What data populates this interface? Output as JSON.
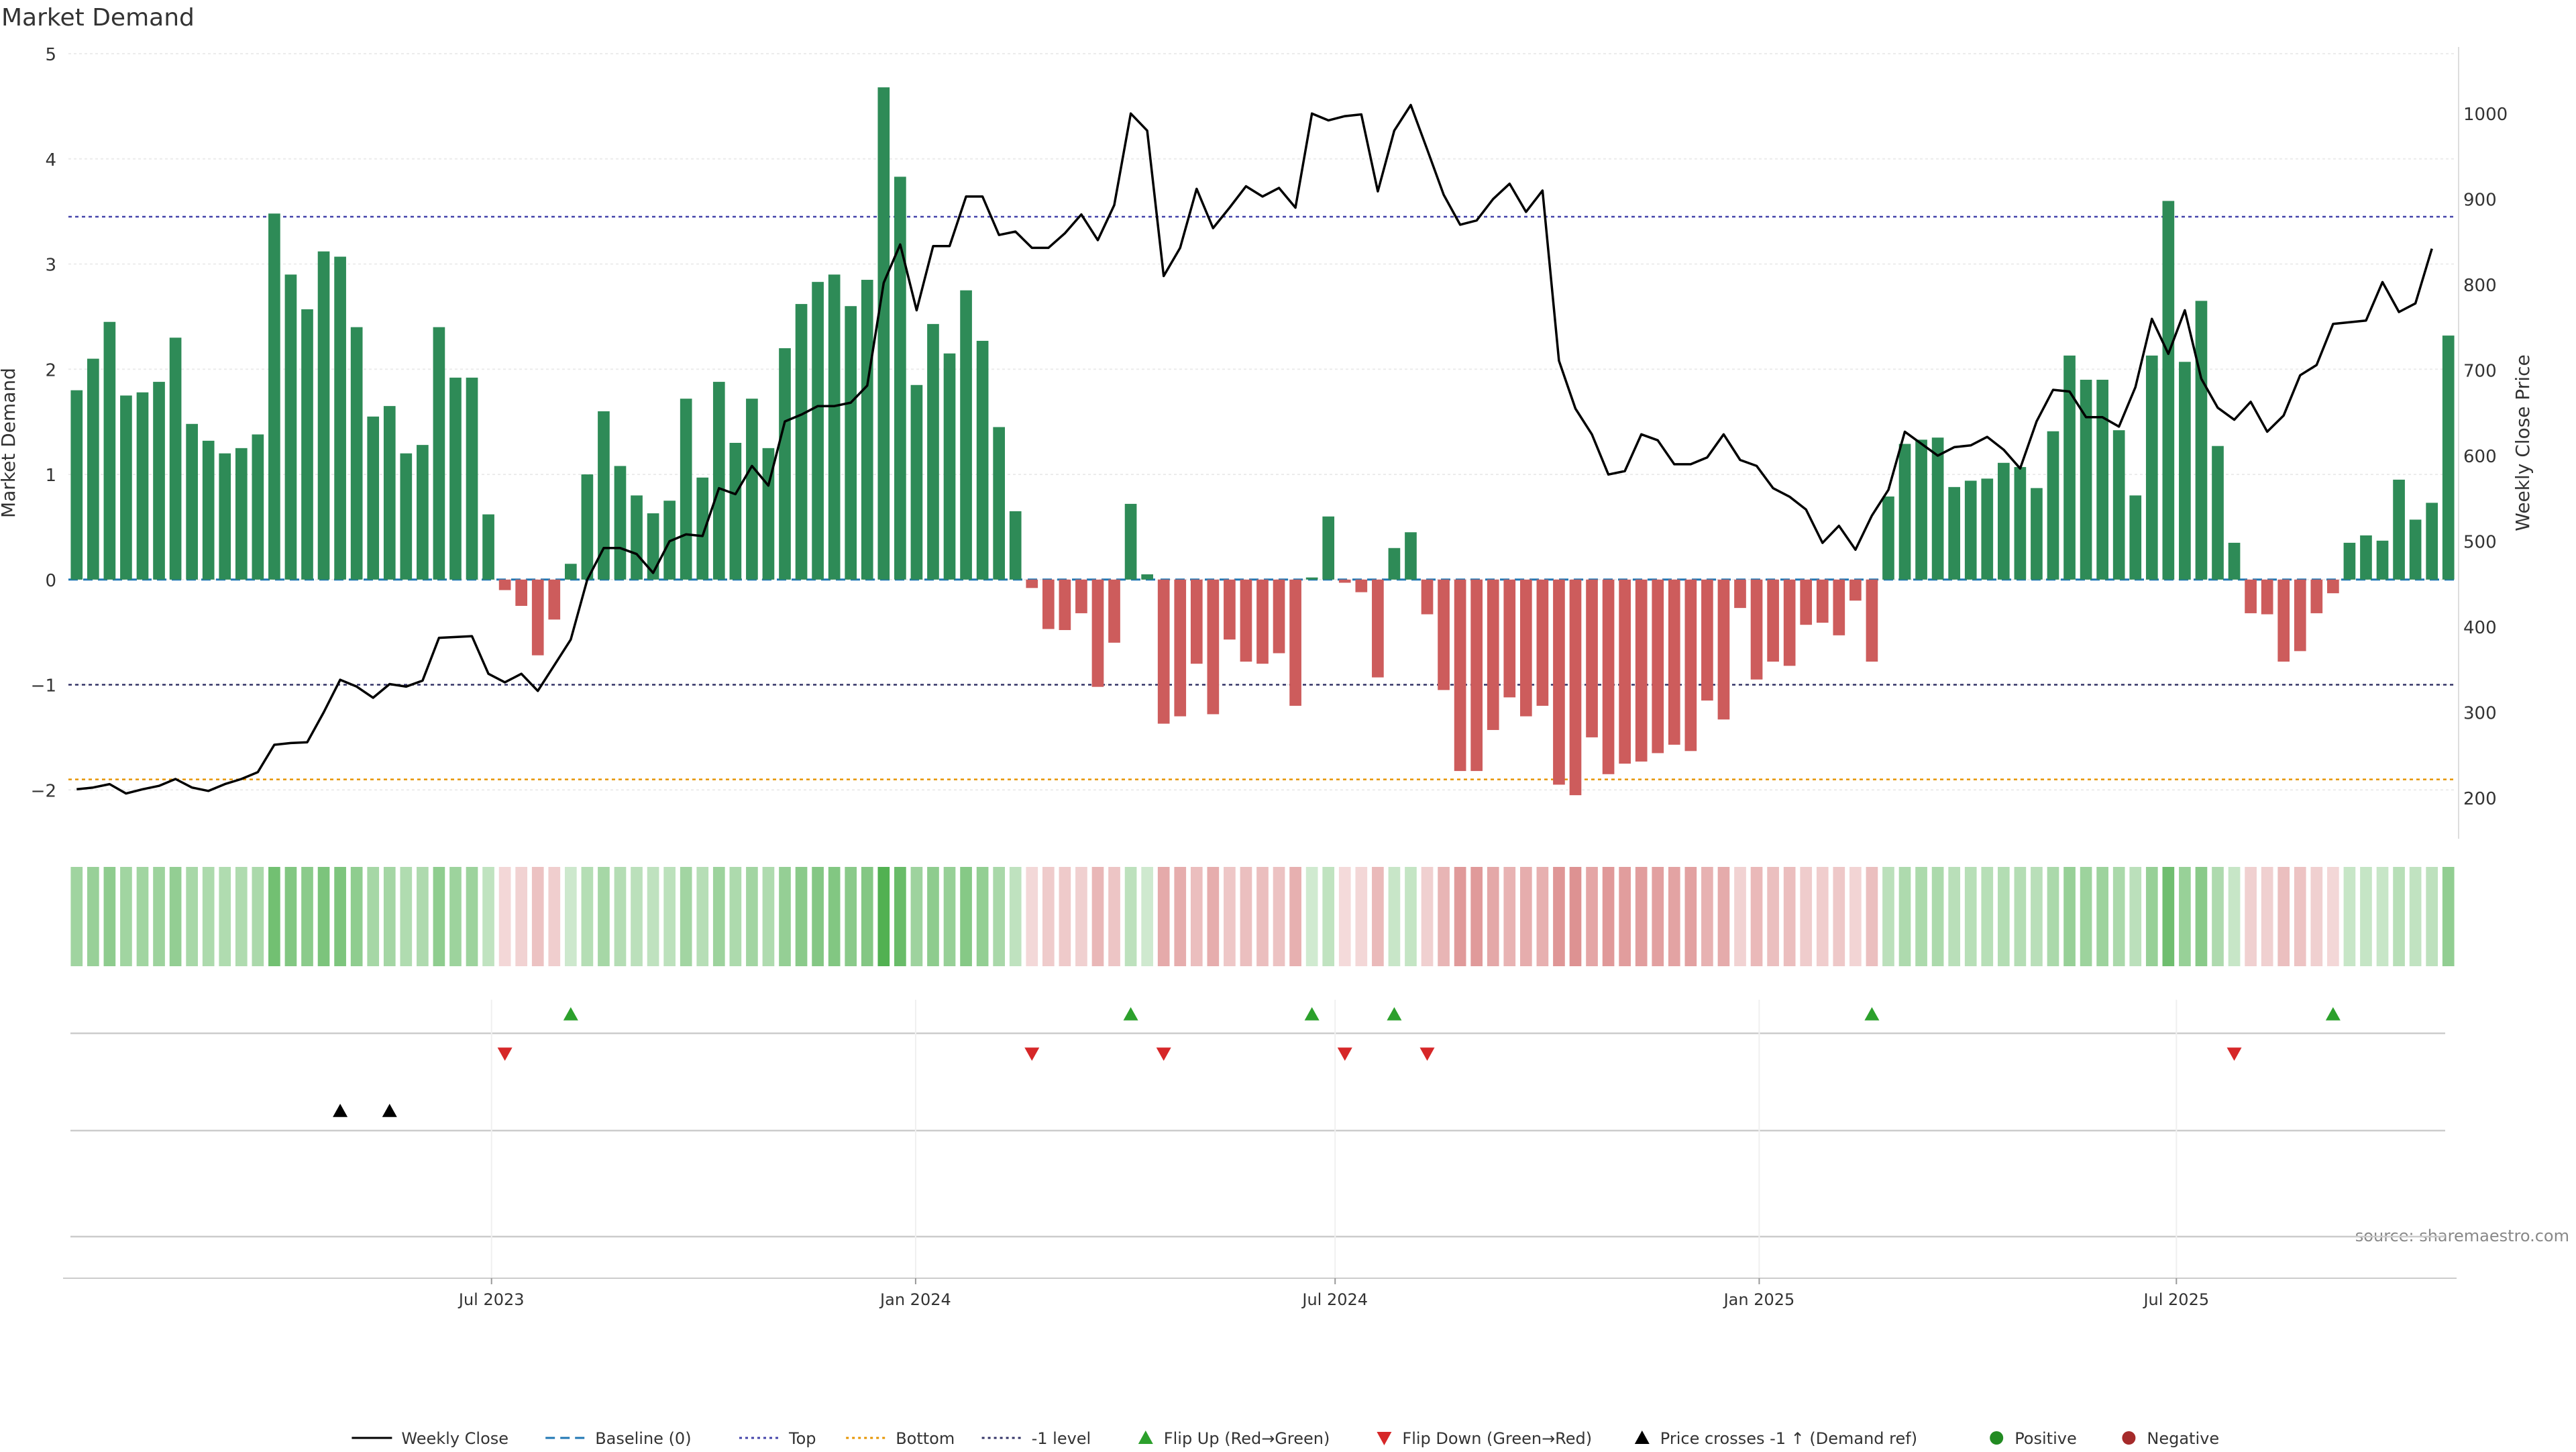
{
  "chart_data": {
    "type": "bar",
    "title": "Market Demand",
    "ylabel_left": "Market Demand",
    "ylabel_right": "Weekly Close Price",
    "source": "source: sharemaestro.com",
    "ylim_left": [
      -2.4,
      5
    ],
    "ylim_right": [
      160,
      1070
    ],
    "yticks_left": [
      "5",
      "4",
      "3",
      "2",
      "1",
      "0",
      "−1",
      "−2"
    ],
    "yticks_left_values": [
      5,
      4,
      3,
      2,
      1,
      0,
      -1,
      -2
    ],
    "yticks_right": [
      "1000",
      "900",
      "800",
      "700",
      "600",
      "500",
      "400",
      "300",
      "200"
    ],
    "yticks_right_values": [
      1000,
      900,
      800,
      700,
      600,
      500,
      400,
      300,
      200
    ],
    "reference_lines": {
      "baseline": 0,
      "top": 3.45,
      "bottom": -1.9,
      "minus_one": -1
    },
    "x_start": "2023-01-02",
    "x_end": "2025-10-27",
    "x_tick_labels": [
      {
        "label": "Jul 2023",
        "date": "2023-07-01"
      },
      {
        "label": "Jan 2024",
        "date": "2024-01-01"
      },
      {
        "label": "Jul 2024",
        "date": "2024-07-01"
      },
      {
        "label": "Jan 2025",
        "date": "2025-01-01"
      },
      {
        "label": "Jul 2025",
        "date": "2025-07-01"
      }
    ],
    "series": [
      {
        "name": "Market Demand",
        "values": [
          1.8,
          2.1,
          2.45,
          1.75,
          1.78,
          1.88,
          2.3,
          1.48,
          1.32,
          1.2,
          1.25,
          1.38,
          3.48,
          2.9,
          2.57,
          3.12,
          3.07,
          2.4,
          1.55,
          1.65,
          1.2,
          1.28,
          2.4,
          1.92,
          1.92,
          0.62,
          -0.1,
          -0.25,
          -0.72,
          -0.38,
          0.15,
          1.0,
          1.6,
          1.08,
          0.8,
          0.63,
          0.75,
          1.72,
          0.97,
          1.88,
          1.3,
          1.72,
          1.25,
          2.2,
          2.62,
          2.83,
          2.9,
          2.6,
          2.85,
          4.68,
          3.83,
          1.85,
          2.43,
          2.15,
          2.75,
          2.27,
          1.45,
          0.65,
          -0.08,
          -0.47,
          -0.48,
          -0.32,
          -1.02,
          -0.6,
          0.72,
          0.05,
          -1.37,
          -1.3,
          -0.8,
          -1.28,
          -0.57,
          -0.78,
          -0.8,
          -0.7,
          -1.2,
          0.02,
          0.6,
          -0.03,
          -0.12,
          -0.93,
          0.3,
          0.45,
          -0.33,
          -1.05,
          -1.82,
          -1.82,
          -1.43,
          -1.12,
          -1.3,
          -1.2,
          -1.95,
          -2.05,
          -1.5,
          -1.85,
          -1.75,
          -1.73,
          -1.65,
          -1.57,
          -1.63,
          -1.15,
          -1.33,
          -0.27,
          -0.95,
          -0.78,
          -0.82,
          -0.43,
          -0.41,
          -0.53,
          -0.2,
          -0.78,
          0.79,
          1.29,
          1.33,
          1.35,
          0.88,
          0.94,
          0.96,
          1.11,
          1.07,
          0.87,
          1.41,
          2.13,
          1.9,
          1.9,
          1.42,
          0.8,
          2.13,
          3.6,
          2.07,
          2.65,
          1.27,
          0.35,
          -0.32,
          -0.33,
          -0.78,
          -0.68,
          -0.32,
          -0.13,
          0.35,
          0.42,
          0.37,
          0.95,
          0.57,
          0.73,
          2.32
        ]
      },
      {
        "name": "Weekly Close",
        "values": [
          210,
          212,
          216,
          205,
          210,
          214,
          222,
          212,
          208,
          216,
          222,
          230,
          262,
          264,
          265,
          300,
          338,
          330,
          317,
          333,
          330,
          337,
          387,
          388,
          389,
          345,
          335,
          345,
          325,
          355,
          385,
          455,
          492,
          492,
          485,
          463,
          500,
          508,
          506,
          562,
          555,
          588,
          565,
          640,
          648,
          658,
          658,
          662,
          682,
          802,
          847,
          770,
          845,
          845,
          903,
          903,
          858,
          862,
          843,
          843,
          860,
          882,
          852,
          893,
          1000,
          980,
          810,
          843,
          912,
          866,
          890,
          915,
          903,
          913,
          890,
          1000,
          992,
          997,
          999,
          909,
          980,
          1010,
          958,
          905,
          870,
          875,
          900,
          918,
          885,
          910,
          711,
          655,
          625,
          578,
          582,
          625,
          618,
          590,
          590,
          598,
          625,
          595,
          588,
          562,
          552,
          537,
          498,
          518,
          490,
          530,
          560,
          628,
          614,
          600,
          610,
          612,
          622,
          607,
          585,
          640,
          677,
          675,
          645,
          645,
          634,
          680,
          760,
          719,
          770,
          690,
          656,
          642,
          663,
          628,
          647,
          694,
          706,
          754,
          756,
          758,
          803,
          768,
          778,
          842
        ]
      }
    ],
    "flip_up_weeks": [
      30,
      64,
      75,
      80,
      109,
      137
    ],
    "flip_down_weeks": [
      26,
      58,
      66,
      77,
      82,
      131
    ],
    "price_cross_weeks": [
      16,
      19
    ],
    "legend": [
      {
        "label": "Weekly Close",
        "color": "#000000",
        "symbol": "solid-line"
      },
      {
        "label": "Baseline (0)",
        "color": "#1f77b4",
        "symbol": "dashed-line"
      },
      {
        "label": "Top",
        "color": "#4444aa",
        "symbol": "dotted-line"
      },
      {
        "label": "Bottom",
        "color": "#e69500",
        "symbol": "dotted-line"
      },
      {
        "label": "-1 level",
        "color": "#333366",
        "symbol": "dotted-line"
      },
      {
        "label": "Flip Up (Red→Green)",
        "color": "#2ca02c",
        "symbol": "triangle-up"
      },
      {
        "label": "Flip Down (Green→Red)",
        "color": "#d62728",
        "symbol": "triangle-down"
      },
      {
        "label": "Price crosses -1 ↑ (Demand ref)",
        "color": "#000000",
        "symbol": "triangle-up"
      },
      {
        "label": "Positive",
        "color": "#228b22",
        "symbol": "circle"
      },
      {
        "label": "Negative",
        "color": "#a52a2a",
        "symbol": "circle"
      }
    ],
    "legend_placement": "bottom-center",
    "colors": {
      "positive_bar": "#2e8b57",
      "negative_bar": "#cd5c5c",
      "price_line": "#000000"
    }
  }
}
